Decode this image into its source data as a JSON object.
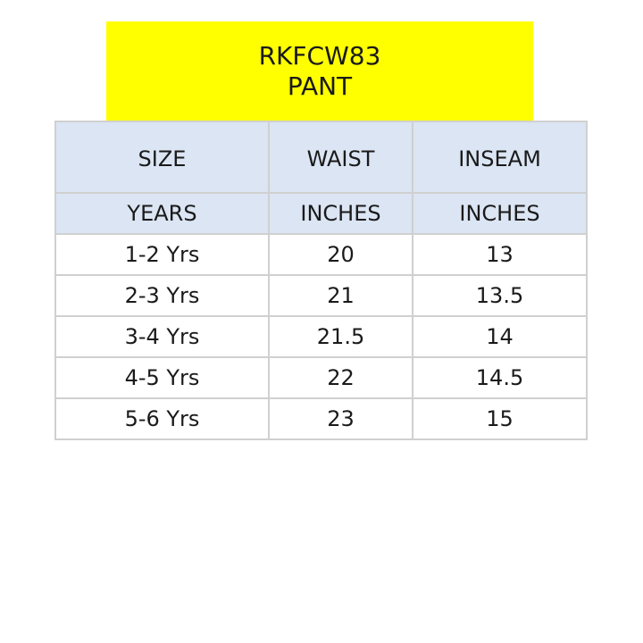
{
  "title": {
    "code": "RKFCW83",
    "garment": "PANT"
  },
  "table": {
    "headers": [
      "SIZE",
      "WAIST",
      "INSEAM"
    ],
    "units": [
      "YEARS",
      "INCHES",
      "INCHES"
    ],
    "rows": [
      [
        "1-2 Yrs",
        "20",
        "13"
      ],
      [
        "2-3 Yrs",
        "21",
        "13.5"
      ],
      [
        "3-4 Yrs",
        "21.5",
        "14"
      ],
      [
        "4-5 Yrs",
        "22",
        "14.5"
      ],
      [
        "5-6 Yrs",
        "23",
        "15"
      ]
    ]
  },
  "colors": {
    "title_background": "#ffff00",
    "header_background": "#dbe5f3",
    "grid": "#d0d0d0"
  }
}
